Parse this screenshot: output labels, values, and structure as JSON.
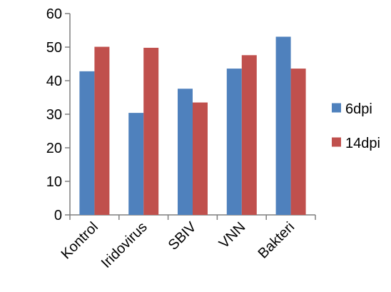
{
  "chart_data": {
    "type": "bar",
    "title": "",
    "xlabel": "",
    "ylabel": "",
    "categories": [
      "Kontrol",
      "Iridovirus",
      "SBIV",
      "VNN",
      "Bakteri"
    ],
    "series": [
      {
        "name": "6dpi",
        "values": [
          42.8,
          30.4,
          37.6,
          43.6,
          53.1
        ],
        "color": "#4f81bd"
      },
      {
        "name": "14dpi",
        "values": [
          50.1,
          49.8,
          33.5,
          47.6,
          43.6
        ],
        "color": "#c0504d"
      }
    ],
    "ylim": [
      0,
      60
    ],
    "yticks": [
      0,
      10,
      20,
      30,
      40,
      50,
      60
    ],
    "grid": false,
    "legend_position": "right"
  }
}
